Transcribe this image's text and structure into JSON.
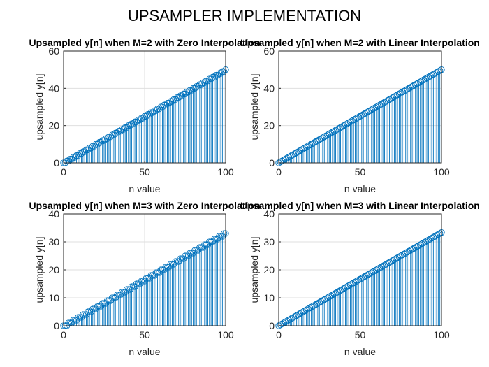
{
  "figure": {
    "suptitle": "UPSAMPLER IMPLEMENTATION",
    "stem_color": "#0072BD",
    "axes_color": "#262626",
    "grid_color": "#dfdfdf"
  },
  "chart_data": [
    {
      "type": "stem",
      "title": "Upsampled y[n] when M=2 with Zero Interpolation",
      "xlabel": "n value",
      "ylabel": "upsampled y[n]",
      "xlim": [
        0,
        100
      ],
      "ylim": [
        0,
        60
      ],
      "xticks": [
        0,
        50,
        100
      ],
      "yticks": [
        0,
        20,
        40,
        60
      ],
      "grid": true,
      "series": [
        {
          "n_range": [
            0,
            100
          ],
          "rule": "y[n] = n/2 for even n; y[n] = (n-1)/2 for odd n (zero-order hold)",
          "y_start": 0,
          "y_end": 50
        }
      ]
    },
    {
      "type": "stem",
      "title": "Upsampled y[n] when M=2 with Linear Interpolation",
      "xlabel": "n value",
      "ylabel": "upsampled y[n]",
      "xlim": [
        0,
        100
      ],
      "ylim": [
        0,
        60
      ],
      "xticks": [
        0,
        50,
        100
      ],
      "yticks": [
        0,
        20,
        40,
        60
      ],
      "grid": true,
      "series": [
        {
          "n_range": [
            0,
            100
          ],
          "rule": "y[n] = n/2",
          "y_start": 0,
          "y_end": 50
        }
      ]
    },
    {
      "type": "stem",
      "title": "Upsampled y[n] when M=3 with Zero Interpolation",
      "xlabel": "n value",
      "ylabel": "upsampled y[n]",
      "xlim": [
        0,
        100
      ],
      "ylim": [
        0,
        40
      ],
      "xticks": [
        0,
        50,
        100
      ],
      "yticks": [
        0,
        10,
        20,
        30,
        40
      ],
      "grid": true,
      "series": [
        {
          "n_range": [
            0,
            100
          ],
          "rule": "y[n] = floor(n/3) (zero-order hold)",
          "y_start": 0,
          "y_end": 33
        }
      ]
    },
    {
      "type": "stem",
      "title": "Upsampled y[n] when M=3 with Linear Interpolation",
      "xlabel": "n value",
      "ylabel": "upsampled y[n]",
      "xlim": [
        0,
        100
      ],
      "ylim": [
        0,
        40
      ],
      "xticks": [
        0,
        50,
        100
      ],
      "yticks": [
        0,
        10,
        20,
        30,
        40
      ],
      "grid": true,
      "series": [
        {
          "n_range": [
            0,
            100
          ],
          "rule": "y[n] = n/3",
          "y_start": 0,
          "y_end": 33.3
        }
      ]
    }
  ]
}
